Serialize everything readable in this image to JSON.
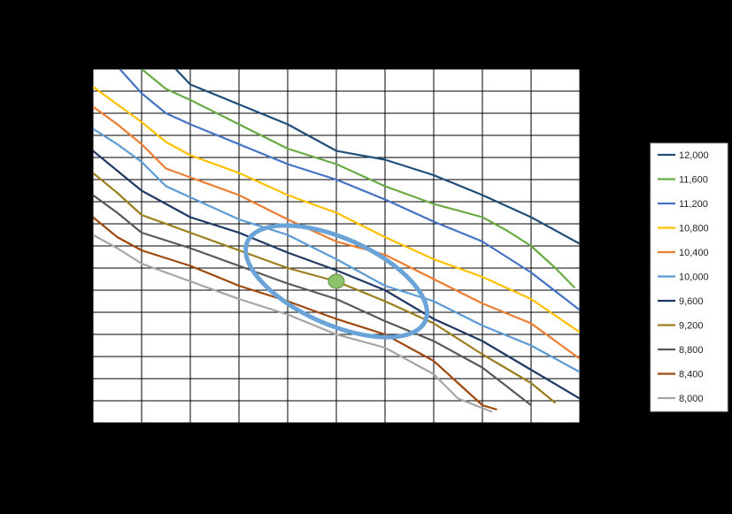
{
  "chart_data": {
    "type": "line",
    "title": "",
    "xlabel": "",
    "ylabel": "",
    "grid": true,
    "legend_position": "right",
    "xlim": [
      0,
      10
    ],
    "ylim": [
      0,
      16
    ],
    "highlight_ellipse": {
      "center": [
        5.0,
        6.4
      ],
      "rx": 2.0,
      "ry": 0.75,
      "color": "#6aa3d8"
    },
    "marker": {
      "x": 5.0,
      "y": 6.4,
      "color": "#8dc16b"
    },
    "series": [
      {
        "name": "12,000",
        "color": "#1f4e79",
        "points": [
          [
            1.7,
            16
          ],
          [
            2,
            15.3
          ],
          [
            3,
            14.4
          ],
          [
            4,
            13.5
          ],
          [
            5,
            12.3
          ],
          [
            6,
            11.9
          ],
          [
            7,
            11.2
          ],
          [
            8,
            10.3
          ],
          [
            9,
            9.3
          ],
          [
            10,
            8.1
          ]
        ]
      },
      {
        "name": "11,600",
        "color": "#6aaa45",
        "points": [
          [
            1,
            16
          ],
          [
            1.5,
            15.1
          ],
          [
            2,
            14.6
          ],
          [
            3,
            13.5
          ],
          [
            4,
            12.4
          ],
          [
            5,
            11.7
          ],
          [
            6,
            10.7
          ],
          [
            7,
            9.9
          ],
          [
            8,
            9.3
          ],
          [
            8.5,
            8.7
          ],
          [
            9,
            8.0
          ],
          [
            9.5,
            7.0
          ],
          [
            9.9,
            6.1
          ]
        ]
      },
      {
        "name": "11,200",
        "color": "#4472c4",
        "points": [
          [
            0.55,
            16
          ],
          [
            1,
            14.9
          ],
          [
            1.5,
            14.0
          ],
          [
            2,
            13.5
          ],
          [
            3,
            12.6
          ],
          [
            4,
            11.7
          ],
          [
            5,
            11.0
          ],
          [
            6,
            10.1
          ],
          [
            7,
            9.1
          ],
          [
            8,
            8.2
          ],
          [
            9,
            6.8
          ],
          [
            10,
            5.1
          ]
        ]
      },
      {
        "name": "10,800",
        "color": "#ffc000",
        "points": [
          [
            0,
            15.2
          ],
          [
            0.5,
            14.4
          ],
          [
            1,
            13.6
          ],
          [
            1.5,
            12.7
          ],
          [
            2,
            12.1
          ],
          [
            3,
            11.3
          ],
          [
            4,
            10.3
          ],
          [
            5,
            9.5
          ],
          [
            6,
            8.4
          ],
          [
            7,
            7.4
          ],
          [
            8,
            6.6
          ],
          [
            9,
            5.6
          ],
          [
            10,
            4.1
          ]
        ]
      },
      {
        "name": "10,400",
        "color": "#ed7d31",
        "points": [
          [
            0,
            14.3
          ],
          [
            0.5,
            13.5
          ],
          [
            1,
            12.6
          ],
          [
            1.5,
            11.5
          ],
          [
            2,
            11.1
          ],
          [
            3,
            10.3
          ],
          [
            4,
            9.2
          ],
          [
            5,
            8.2
          ],
          [
            6,
            7.6
          ],
          [
            7,
            6.5
          ],
          [
            8,
            5.4
          ],
          [
            9,
            4.5
          ],
          [
            10,
            2.9
          ]
        ]
      },
      {
        "name": "10,000",
        "color": "#5b9bd5",
        "points": [
          [
            0,
            13.3
          ],
          [
            0.5,
            12.6
          ],
          [
            1,
            11.8
          ],
          [
            1.5,
            10.7
          ],
          [
            2,
            10.2
          ],
          [
            3,
            9.2
          ],
          [
            4,
            8.5
          ],
          [
            5,
            7.4
          ],
          [
            6,
            6.2
          ],
          [
            7,
            5.5
          ],
          [
            8,
            4.4
          ],
          [
            9,
            3.5
          ],
          [
            10,
            2.3
          ]
        ]
      },
      {
        "name": "9,600",
        "color": "#203864",
        "points": [
          [
            0,
            12.3
          ],
          [
            0.5,
            11.4
          ],
          [
            1,
            10.5
          ],
          [
            2,
            9.3
          ],
          [
            3,
            8.6
          ],
          [
            4,
            7.7
          ],
          [
            5,
            6.9
          ],
          [
            6,
            6.0
          ],
          [
            7,
            4.7
          ],
          [
            8,
            3.7
          ],
          [
            9,
            2.4
          ],
          [
            10,
            1.1
          ]
        ]
      },
      {
        "name": "9,200",
        "color": "#9c7e1f",
        "points": [
          [
            0,
            11.3
          ],
          [
            0.5,
            10.4
          ],
          [
            1,
            9.4
          ],
          [
            2,
            8.6
          ],
          [
            3,
            7.8
          ],
          [
            4,
            7.0
          ],
          [
            5,
            6.4
          ],
          [
            6,
            5.5
          ],
          [
            7,
            4.5
          ],
          [
            8,
            3.1
          ],
          [
            9,
            1.8
          ],
          [
            9.5,
            0.9
          ]
        ]
      },
      {
        "name": "8,800",
        "color": "#595959",
        "points": [
          [
            0,
            10.3
          ],
          [
            0.5,
            9.5
          ],
          [
            1,
            8.6
          ],
          [
            2,
            7.9
          ],
          [
            3,
            7.1
          ],
          [
            4,
            6.3
          ],
          [
            5,
            5.6
          ],
          [
            6,
            4.6
          ],
          [
            7,
            3.7
          ],
          [
            8,
            2.5
          ],
          [
            9,
            0.8
          ]
        ]
      },
      {
        "name": "8,400",
        "color": "#9e480e",
        "points": [
          [
            0,
            9.3
          ],
          [
            0.5,
            8.4
          ],
          [
            1,
            7.8
          ],
          [
            2,
            7.1
          ],
          [
            3,
            6.2
          ],
          [
            4,
            5.5
          ],
          [
            5,
            4.7
          ],
          [
            6,
            4.0
          ],
          [
            7,
            2.8
          ],
          [
            7.5,
            1.8
          ],
          [
            8,
            0.8
          ],
          [
            8.3,
            0.6
          ]
        ]
      },
      {
        "name": "8,000",
        "color": "#a5a5a5",
        "points": [
          [
            0,
            8.5
          ],
          [
            0.5,
            7.9
          ],
          [
            1,
            7.2
          ],
          [
            2,
            6.4
          ],
          [
            3,
            5.6
          ],
          [
            4,
            4.9
          ],
          [
            5,
            4.0
          ],
          [
            6,
            3.4
          ],
          [
            7,
            2.2
          ],
          [
            7.5,
            1.1
          ],
          [
            8.2,
            0.5
          ]
        ]
      }
    ]
  }
}
